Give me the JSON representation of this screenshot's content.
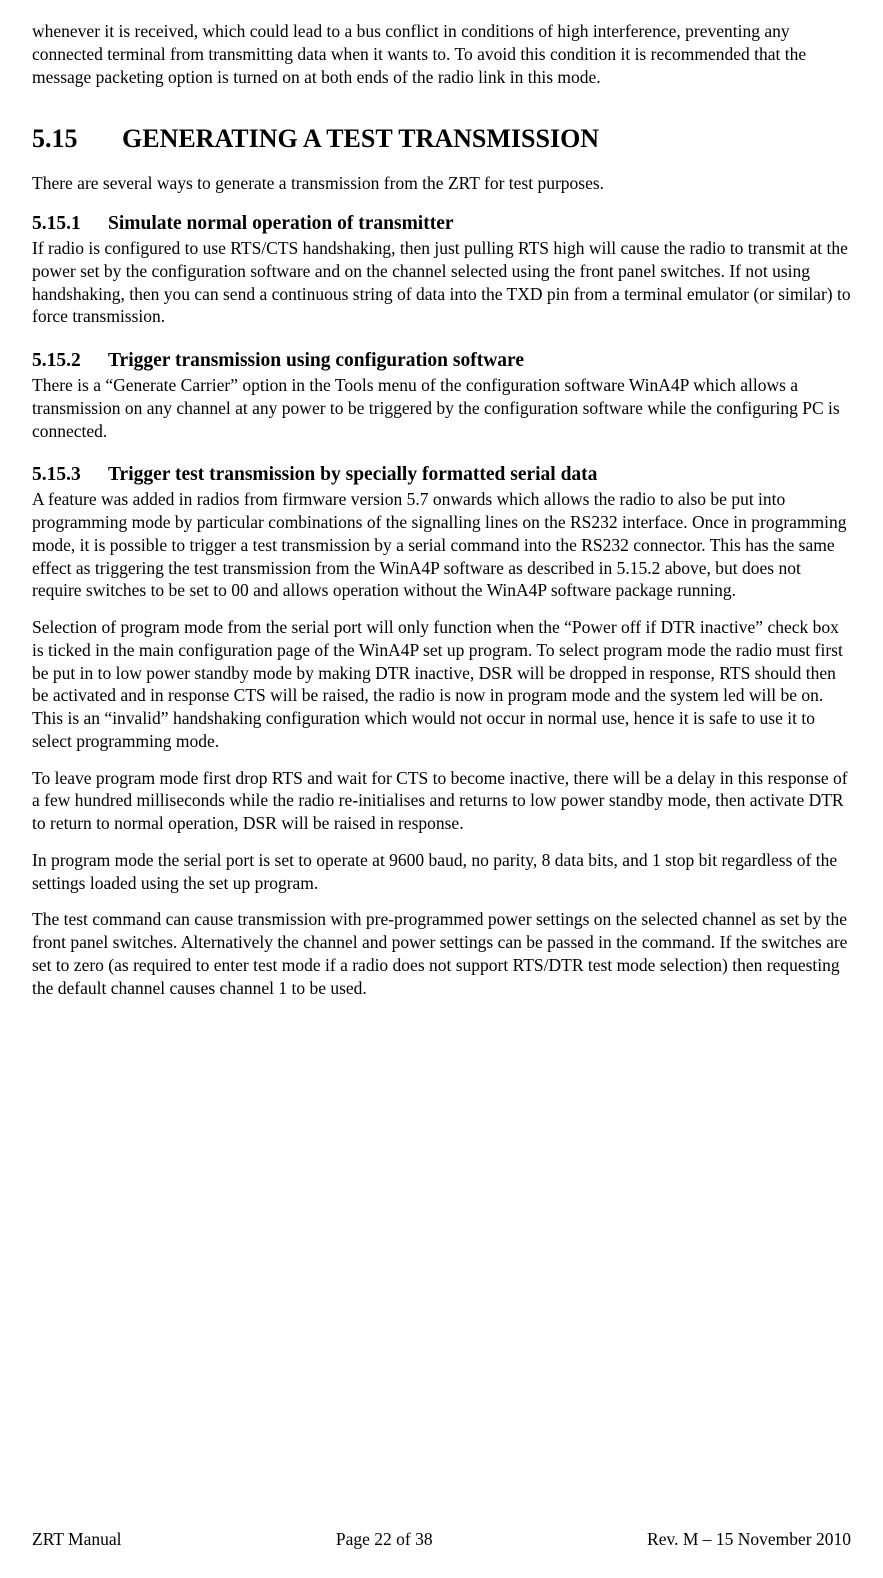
{
  "intro_para": "whenever it is received, which could lead to a bus conflict in conditions of high interference, preventing any connected terminal from transmitting data when it wants to. To avoid this condition it is recommended that the message packeting option is turned on at both ends of the radio link in this mode.",
  "section": {
    "num": "5.15",
    "title": "GENERATING A TEST TRANSMISSION",
    "lead": "There are several ways to generate a transmission from the ZRT for test purposes."
  },
  "sub1": {
    "num": "5.15.1",
    "title": "Simulate normal operation of transmitter",
    "p1": "If radio is configured to use RTS/CTS handshaking, then just pulling RTS high will cause the radio to transmit at the power set by the configuration software and on the channel selected using the front panel switches.  If not using handshaking, then you can send a continuous string of data into the TXD pin from a terminal emulator (or similar) to force transmission."
  },
  "sub2": {
    "num": "5.15.2",
    "title": "Trigger transmission using configuration software",
    "p1": "There is a “Generate Carrier” option in the Tools menu of the configuration software WinA4P which allows a transmission on any channel at any power to be triggered by the configuration software while the configuring PC is connected."
  },
  "sub3": {
    "num": "5.15.3",
    "title": "Trigger test transmission by specially formatted serial data",
    "p1": "A feature was added in radios from firmware version 5.7 onwards which allows the radio to also be put into programming mode by particular combinations of the signalling lines on the RS232 interface.   Once in programming mode,  it is possible to trigger a test transmission by a serial command into the RS232 connector.  This has the same effect as triggering the test transmission from the WinA4P software as described in 5.15.2 above, but does not require switches to be set to 00 and allows operation without the WinA4P software package running.",
    "p2": "Selection of program mode from the serial port will only function when the “Power off if DTR inactive” check box is ticked in the main configuration page of the WinA4P set up program.   To select program mode the radio must first be put in to low power standby mode by making DTR inactive, DSR will be dropped in response, RTS should then be activated and in response CTS will be raised, the radio is now in program mode and the system led will be on.    This is an “invalid” handshaking configuration which would not occur in normal use, hence it is safe to use it to select programming mode.",
    "p3": "To leave program mode first drop RTS and wait for CTS to become inactive, there will be a delay in this response of a few hundred milliseconds while the radio re-initialises and returns to low power standby mode, then activate DTR to return to normal operation, DSR will be raised in response.",
    "p4": "In program mode the serial port is set to operate at 9600 baud, no parity, 8 data bits, and 1 stop bit regardless of the settings loaded using the set up program.",
    "p5": "The test  command can cause transmission with pre-programmed power settings on the selected channel as set by the front panel switches.  Alternatively the channel and power settings can be passed in the command.   If the switches are set to zero (as required to enter test mode if a radio does not support RTS/DTR test mode selection) then requesting the default channel causes channel 1 to be used."
  },
  "footer": {
    "left": "ZRT Manual",
    "center": "Page 22 of 38",
    "right": "Rev. M – 15 November 2010"
  }
}
